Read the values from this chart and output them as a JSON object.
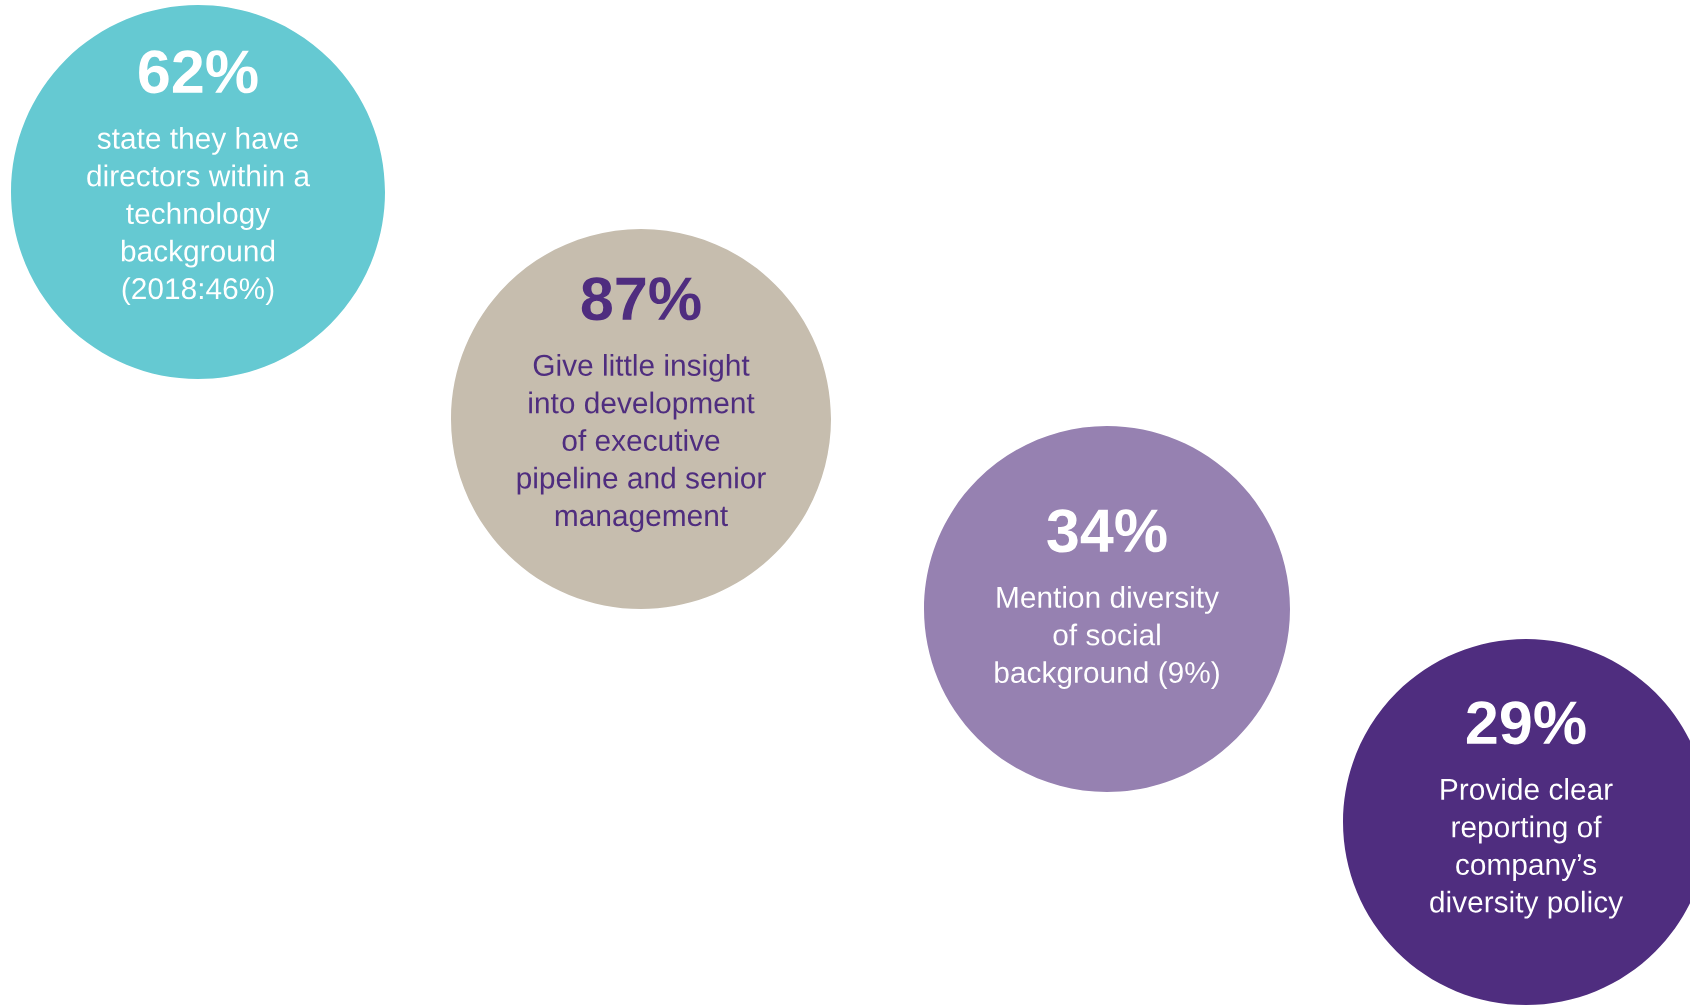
{
  "chart_data": {
    "type": "other",
    "categories": [
      "state they have\ndirectors within a\ntechnology\nbackground\n(2018:46%)",
      "Give little insight\ninto development\nof executive\npipeline and senior\nmanagement",
      "Mention diversity\nof social\nbackground (9%)",
      "Provide clear\nreporting of\ncompany’s\ndiversity policy"
    ],
    "values": [
      62,
      87,
      34,
      29
    ],
    "value_labels": [
      "62%",
      "87%",
      "34%",
      "29%"
    ],
    "colors": [
      "#65c9d2",
      "#c6bdae",
      "#9681b1",
      "#4f2d7f"
    ]
  }
}
